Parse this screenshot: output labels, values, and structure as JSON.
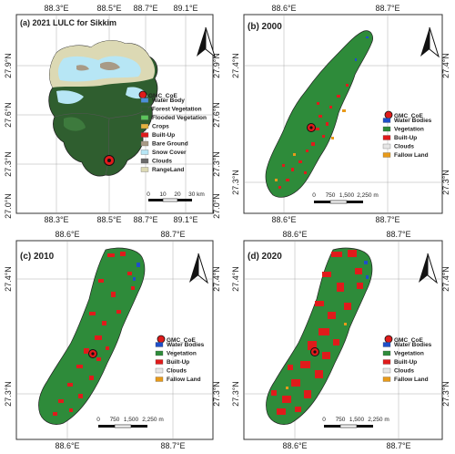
{
  "panels": [
    {
      "id": "a",
      "title": "(a) 2021 LULC for Sikkim",
      "top_ticks": [
        "88.3°E",
        "88.5°E",
        "88.7°E",
        "89.1°E"
      ],
      "bottom_ticks": [
        "88.3°E",
        "88.5°E",
        "88.7°E",
        "89.1°E"
      ],
      "left_ticks": [
        "27.9°N",
        "27.6°N",
        "27.3°N",
        "27.0°N"
      ],
      "right_ticks": [
        "27.9°N",
        "27.6°N",
        "27.3°N",
        "27.0°N"
      ],
      "marker_label": "GMC_CoE",
      "legend": [
        {
          "label": "Water Body",
          "color": "#4a90d9"
        },
        {
          "label": "Forest Vegetation",
          "color": "#2e5e2e"
        },
        {
          "label": "Flooded Vegetation",
          "color": "#5cc45c"
        },
        {
          "label": "Crops",
          "color": "#e3b340"
        },
        {
          "label": "Built-Up",
          "color": "#e01b1b"
        },
        {
          "label": "Bare Ground",
          "color": "#a89a86"
        },
        {
          "label": "Snow Cover",
          "color": "#b7e6f5"
        },
        {
          "label": "Clouds",
          "color": "#6b6b6b"
        },
        {
          "label": "RangeLand",
          "color": "#dcd9b4"
        }
      ],
      "scale_labels": [
        "0",
        "10",
        "20",
        "30 km"
      ]
    },
    {
      "id": "b",
      "title": "(b) 2000",
      "top_ticks": [
        "88.6°E",
        "88.7°E"
      ],
      "bottom_ticks": [
        "88.6°E",
        "88.7°E"
      ],
      "left_ticks": [
        "27.4°N",
        "27.3°N"
      ],
      "right_ticks": [
        "27.4°N",
        "27.3°N"
      ],
      "marker_label": "GMC_CoE",
      "legend": [
        {
          "label": "Water Bodies",
          "color": "#1f4fc9"
        },
        {
          "label": "Vegetation",
          "color": "#2e8b3a"
        },
        {
          "label": "Built-Up",
          "color": "#e01b1b"
        },
        {
          "label": "Clouds",
          "color": "#e6e6e6"
        },
        {
          "label": "Fallow Land",
          "color": "#e89a1a"
        }
      ],
      "scale_labels": [
        "0",
        "750",
        "1,500",
        "2,250 m"
      ]
    },
    {
      "id": "c",
      "title": "(c) 2010",
      "top_ticks": [
        "88.6°E",
        "88.7°E"
      ],
      "bottom_ticks": [
        "88.6°E",
        "88.7°E"
      ],
      "left_ticks": [
        "27.4°N",
        "27.3°N"
      ],
      "right_ticks": [
        "27.4°N",
        "27.3°N"
      ],
      "marker_label": "GMC_CoE",
      "legend": [
        {
          "label": "Water Bodies",
          "color": "#1f4fc9"
        },
        {
          "label": "Vegetation",
          "color": "#2e8b3a"
        },
        {
          "label": "Built-Up",
          "color": "#e01b1b"
        },
        {
          "label": "Clouds",
          "color": "#e6e6e6"
        },
        {
          "label": "Fallow Land",
          "color": "#e89a1a"
        }
      ],
      "scale_labels": [
        "0",
        "750",
        "1,500",
        "2,250 m"
      ]
    },
    {
      "id": "d",
      "title": "(d) 2020",
      "top_ticks": [
        "88.6°E",
        "88.7°E"
      ],
      "bottom_ticks": [
        "88.6°E",
        "88.7°E"
      ],
      "left_ticks": [
        "27.4°N",
        "27.3°N"
      ],
      "right_ticks": [
        "27.4°N",
        "27.3°N"
      ],
      "marker_label": "GMC_CoE",
      "legend": [
        {
          "label": "Water Bodies",
          "color": "#1f4fc9"
        },
        {
          "label": "Vegetation",
          "color": "#2e8b3a"
        },
        {
          "label": "Built-Up",
          "color": "#e01b1b"
        },
        {
          "label": "Clouds",
          "color": "#e6e6e6"
        },
        {
          "label": "Fallow Land",
          "color": "#e89a1a"
        }
      ],
      "scale_labels": [
        "0",
        "750",
        "1,500",
        "2,250 m"
      ]
    }
  ]
}
